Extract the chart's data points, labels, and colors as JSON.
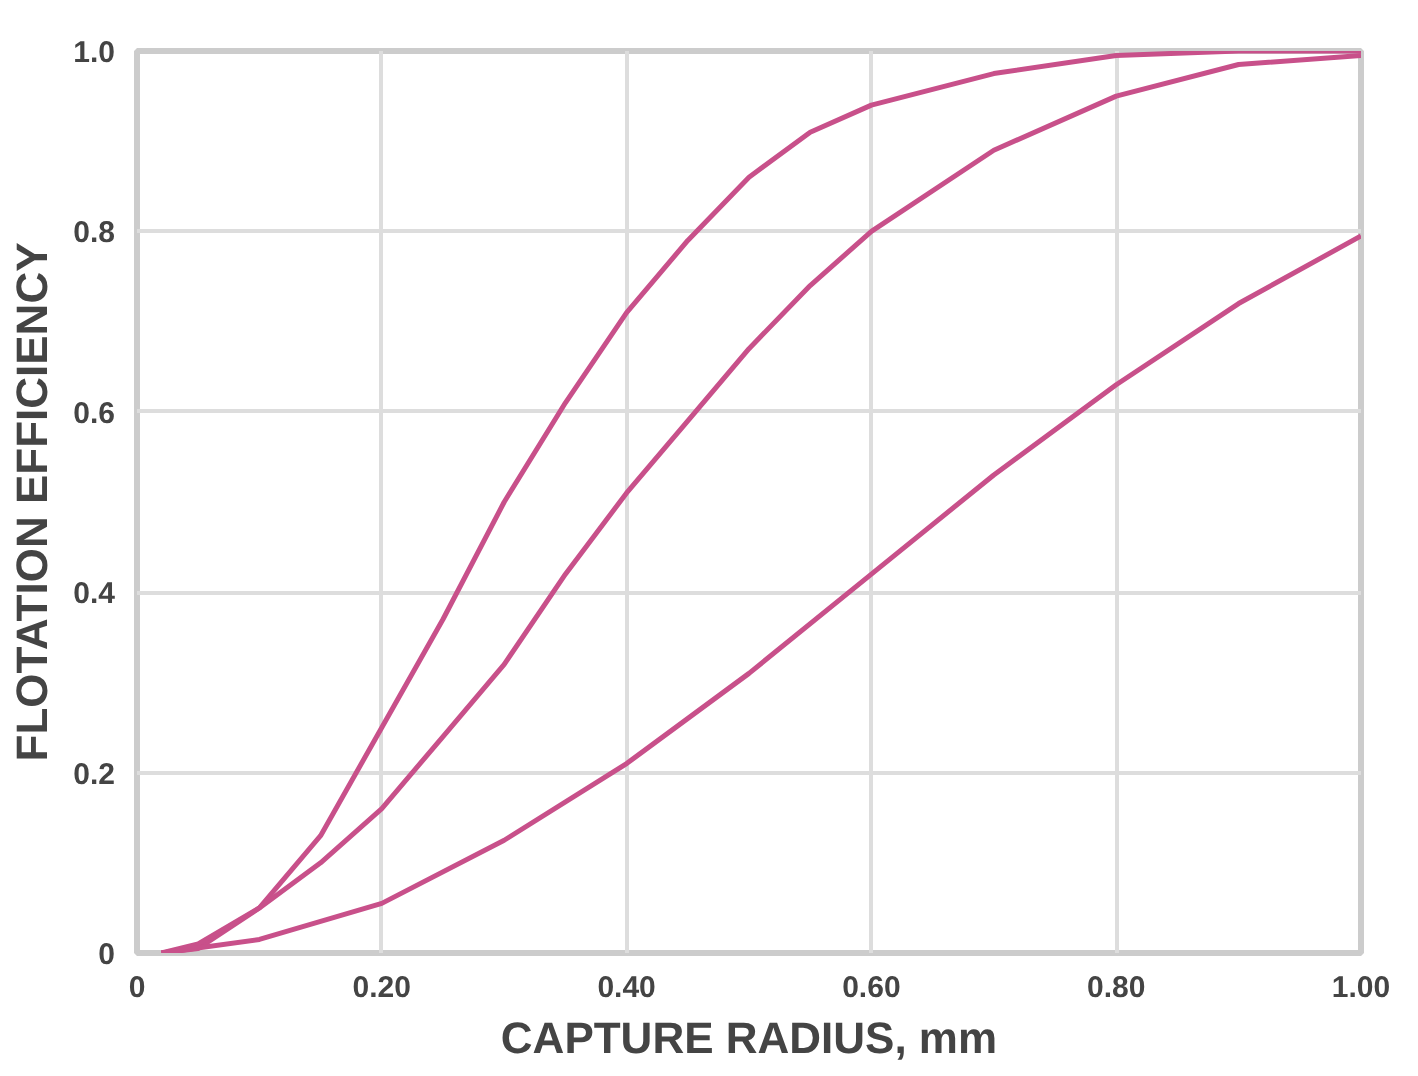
{
  "chart_data": {
    "type": "line",
    "xlabel": "CAPTURE RADIUS, mm",
    "ylabel": "FLOTATION EFFICIENCY",
    "xlim": [
      0,
      1.0
    ],
    "ylim": [
      0,
      1.0
    ],
    "xticks": [
      0,
      {
        "value": 0.2,
        "label": "0.20"
      },
      {
        "value": 0.4,
        "label": "0.40"
      },
      {
        "value": 0.6,
        "label": "0.60"
      },
      {
        "value": 0.8,
        "label": "0.80"
      },
      {
        "value": 1.0,
        "label": "1.00"
      }
    ],
    "yticks": [
      0,
      0.2,
      0.4,
      0.6,
      0.8,
      {
        "value": 1.0,
        "label": "1.0"
      }
    ],
    "grid": true,
    "marker": "none",
    "line_style": "solid",
    "series": [
      {
        "color": "#c8508a",
        "x": [
          0.02,
          0.05,
          0.1,
          0.15,
          0.2,
          0.25,
          0.3,
          0.35,
          0.4,
          0.45,
          0.5,
          0.55,
          0.6,
          0.7,
          0.8,
          0.9,
          1.0
        ],
        "values": [
          0,
          0.005,
          0.05,
          0.13,
          0.25,
          0.37,
          0.5,
          0.61,
          0.71,
          0.79,
          0.86,
          0.91,
          0.94,
          0.975,
          0.995,
          1.0,
          1.0
        ]
      },
      {
        "color": "#c8508a",
        "x": [
          0.02,
          0.05,
          0.1,
          0.15,
          0.2,
          0.25,
          0.3,
          0.35,
          0.4,
          0.45,
          0.5,
          0.55,
          0.6,
          0.7,
          0.8,
          0.9,
          1.0
        ],
        "values": [
          0,
          0.01,
          0.05,
          0.1,
          0.16,
          0.24,
          0.32,
          0.42,
          0.51,
          0.59,
          0.67,
          0.74,
          0.8,
          0.89,
          0.95,
          0.985,
          0.995
        ]
      },
      {
        "color": "#c8508a",
        "x": [
          0.02,
          0.1,
          0.2,
          0.3,
          0.4,
          0.5,
          0.6,
          0.7,
          0.8,
          0.9,
          1.0
        ],
        "values": [
          0,
          0.015,
          0.055,
          0.125,
          0.21,
          0.31,
          0.42,
          0.53,
          0.63,
          0.72,
          0.795
        ]
      }
    ]
  }
}
